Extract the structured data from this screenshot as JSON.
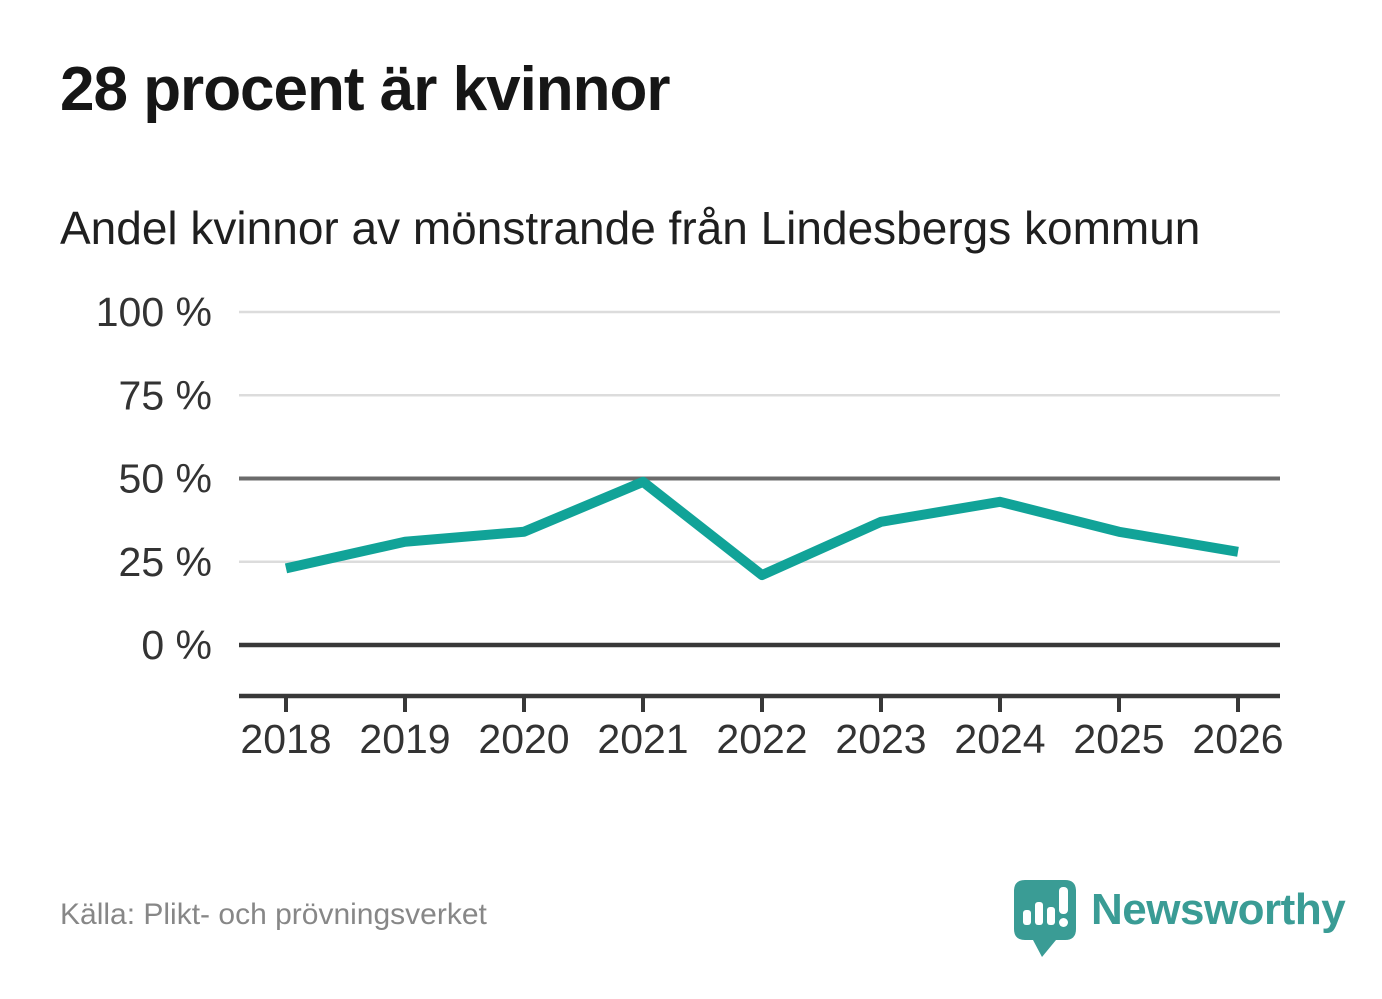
{
  "chart_data": {
    "type": "line",
    "title": "28 procent är kvinnor",
    "subtitle": "Andel kvinnor av mönstrande från Lindesbergs kommun",
    "x": [
      "2018",
      "2019",
      "2020",
      "2021",
      "2022",
      "2023",
      "2024",
      "2025",
      "2026"
    ],
    "values": [
      23,
      31,
      34,
      49,
      21,
      37,
      43,
      34,
      28
    ],
    "unit": "%",
    "ylim": [
      0,
      100
    ],
    "y_ticks": [
      100,
      75,
      50,
      25,
      0
    ],
    "y_tick_suffix": " %",
    "grid": "horizontal gridlines; 0% baseline and 50% line emphasized dark",
    "legend": "none",
    "line_color": "#11a398"
  },
  "footer": {
    "source": "Källa: Plikt- och prövningsverket",
    "brand": "Newsworthy",
    "brand_color": "#3a9c95",
    "logo_icon": "newsworthy-speech-bubble-bar-chart-icon"
  }
}
